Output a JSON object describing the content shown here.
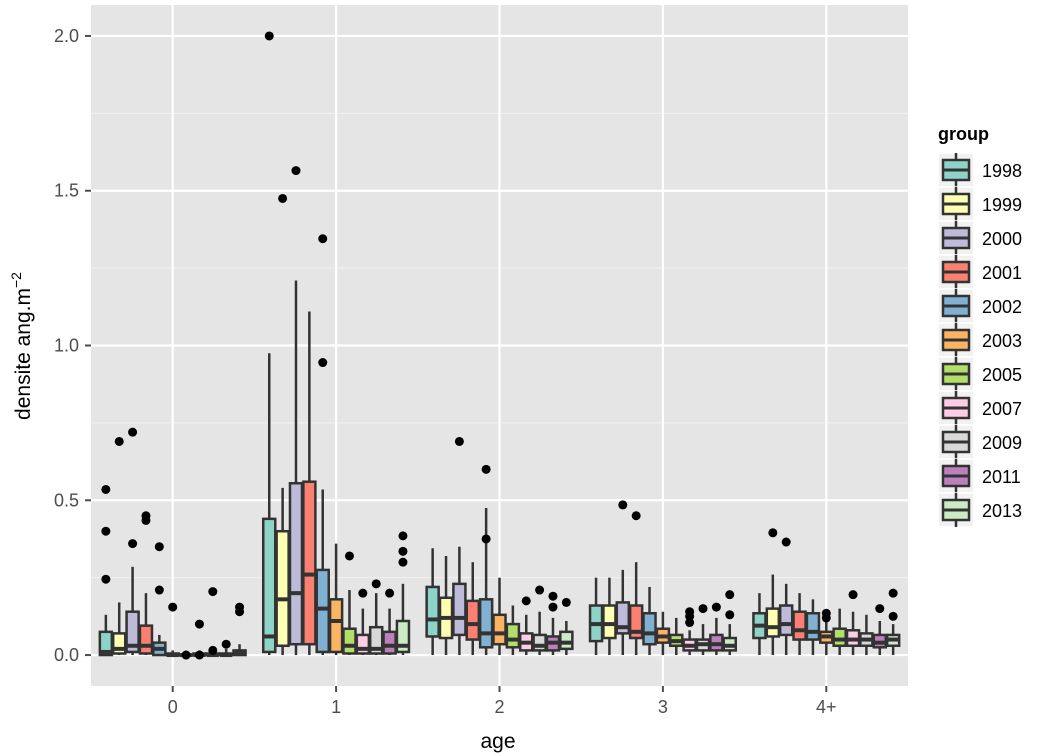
{
  "chart_data": {
    "type": "boxplot",
    "xlabel": "age",
    "ylabel_main": "densite ang.m",
    "ylabel_exponent": "−2",
    "legend_title": "group",
    "legend_position": "right",
    "grid": true,
    "ylim": [
      -0.1,
      2.1
    ],
    "y_ticks": [
      0.0,
      0.5,
      1.0,
      1.5,
      2.0
    ],
    "y_tick_labels": [
      "0.0",
      "0.5",
      "1.0",
      "1.5",
      "2.0"
    ],
    "categories": [
      "0",
      "1",
      "2",
      "3",
      "4+"
    ],
    "groups": [
      "1998",
      "1999",
      "2000",
      "2001",
      "2002",
      "2003",
      "2005",
      "2007",
      "2009",
      "2011",
      "2013"
    ],
    "colors": [
      "#8DD3C7",
      "#FFFFB3",
      "#BEBADA",
      "#FB8072",
      "#80B1D3",
      "#FDB462",
      "#B3DE69",
      "#FCCDE5",
      "#D9D9D9",
      "#BC80BD",
      "#CCEBC5"
    ],
    "box_stats": {
      "0": [
        {
          "lo": 0.0,
          "q1": 0.0,
          "med": 0.01,
          "q3": 0.075,
          "hi": 0.13,
          "out": [
            0.245,
            0.4,
            0.535
          ]
        },
        {
          "lo": 0.0,
          "q1": 0.005,
          "med": 0.02,
          "q3": 0.07,
          "hi": 0.17,
          "out": [
            0.69
          ]
        },
        {
          "lo": 0.0,
          "q1": 0.01,
          "med": 0.03,
          "q3": 0.14,
          "hi": 0.285,
          "out": [
            0.36,
            0.72
          ]
        },
        {
          "lo": 0.0,
          "q1": 0.005,
          "med": 0.03,
          "q3": 0.095,
          "hi": 0.2,
          "out": [
            0.435,
            0.45
          ]
        },
        {
          "lo": 0.0,
          "q1": 0.0,
          "med": 0.02,
          "q3": 0.04,
          "hi": 0.065,
          "out": [
            0.21,
            0.35
          ]
        },
        {
          "lo": 0.0,
          "q1": 0.0,
          "med": 0.0,
          "q3": 0.005,
          "hi": 0.015,
          "out": [
            0.155
          ]
        },
        {
          "lo": 0.0,
          "q1": 0.0,
          "med": 0.0,
          "q3": 0.0,
          "hi": 0.005,
          "out": [
            0.0
          ]
        },
        {
          "lo": 0.0,
          "q1": 0.0,
          "med": 0.0,
          "q3": 0.005,
          "hi": 0.015,
          "out": [
            0.0,
            0.1
          ]
        },
        {
          "lo": 0.0,
          "q1": 0.0,
          "med": 0.0,
          "q3": 0.005,
          "hi": 0.015,
          "out": [
            0.015,
            0.205
          ]
        },
        {
          "lo": 0.0,
          "q1": 0.0,
          "med": 0.0,
          "q3": 0.005,
          "hi": 0.02,
          "out": [
            0.035
          ]
        },
        {
          "lo": 0.0,
          "q1": 0.0,
          "med": 0.005,
          "q3": 0.015,
          "hi": 0.035,
          "out": [
            0.14,
            0.155
          ]
        }
      ],
      "1": [
        {
          "lo": 0.0,
          "q1": 0.01,
          "med": 0.06,
          "q3": 0.44,
          "hi": 0.975,
          "out": [
            2.0
          ]
        },
        {
          "lo": 0.0,
          "q1": 0.03,
          "med": 0.18,
          "q3": 0.4,
          "hi": 0.54,
          "out": [
            1.475
          ]
        },
        {
          "lo": 0.0,
          "q1": 0.035,
          "med": 0.2,
          "q3": 0.555,
          "hi": 1.21,
          "out": [
            1.565
          ]
        },
        {
          "lo": 0.0,
          "q1": 0.035,
          "med": 0.26,
          "q3": 0.56,
          "hi": 1.11,
          "out": []
        },
        {
          "lo": 0.0,
          "q1": 0.01,
          "med": 0.15,
          "q3": 0.275,
          "hi": 0.535,
          "out": [
            0.945,
            1.345
          ]
        },
        {
          "lo": 0.0,
          "q1": 0.01,
          "med": 0.11,
          "q3": 0.18,
          "hi": 0.36,
          "out": []
        },
        {
          "lo": 0.0,
          "q1": 0.005,
          "med": 0.03,
          "q3": 0.085,
          "hi": 0.21,
          "out": [
            0.32
          ]
        },
        {
          "lo": 0.0,
          "q1": 0.005,
          "med": 0.02,
          "q3": 0.065,
          "hi": 0.15,
          "out": [
            0.2
          ]
        },
        {
          "lo": 0.0,
          "q1": 0.005,
          "med": 0.02,
          "q3": 0.09,
          "hi": 0.2,
          "out": [
            0.23
          ]
        },
        {
          "lo": 0.0,
          "q1": 0.005,
          "med": 0.03,
          "q3": 0.075,
          "hi": 0.15,
          "out": [
            0.2
          ]
        },
        {
          "lo": 0.0,
          "q1": 0.01,
          "med": 0.03,
          "q3": 0.11,
          "hi": 0.23,
          "out": [
            0.3,
            0.335,
            0.385
          ]
        }
      ],
      "2": [
        {
          "lo": 0.0,
          "q1": 0.06,
          "med": 0.115,
          "q3": 0.22,
          "hi": 0.345,
          "out": []
        },
        {
          "lo": 0.0,
          "q1": 0.055,
          "med": 0.12,
          "q3": 0.185,
          "hi": 0.32,
          "out": []
        },
        {
          "lo": 0.0,
          "q1": 0.065,
          "med": 0.12,
          "q3": 0.23,
          "hi": 0.35,
          "out": [
            0.69
          ]
        },
        {
          "lo": 0.0,
          "q1": 0.05,
          "med": 0.1,
          "q3": 0.175,
          "hi": 0.3,
          "out": []
        },
        {
          "lo": 0.0,
          "q1": 0.025,
          "med": 0.07,
          "q3": 0.18,
          "hi": 0.475,
          "out": [
            0.375,
            0.6
          ]
        },
        {
          "lo": 0.0,
          "q1": 0.035,
          "med": 0.07,
          "q3": 0.13,
          "hi": 0.25,
          "out": []
        },
        {
          "lo": 0.0,
          "q1": 0.025,
          "med": 0.05,
          "q3": 0.1,
          "hi": 0.16,
          "out": []
        },
        {
          "lo": 0.0,
          "q1": 0.015,
          "med": 0.04,
          "q3": 0.07,
          "hi": 0.13,
          "out": [
            0.175
          ]
        },
        {
          "lo": 0.0,
          "q1": 0.015,
          "med": 0.03,
          "q3": 0.065,
          "hi": 0.14,
          "out": [
            0.21
          ]
        },
        {
          "lo": 0.0,
          "q1": 0.015,
          "med": 0.04,
          "q3": 0.06,
          "hi": 0.12,
          "out": [
            0.155,
            0.19
          ]
        },
        {
          "lo": 0.0,
          "q1": 0.02,
          "med": 0.04,
          "q3": 0.075,
          "hi": 0.11,
          "out": [
            0.17
          ]
        }
      ],
      "3": [
        {
          "lo": 0.0,
          "q1": 0.045,
          "med": 0.1,
          "q3": 0.16,
          "hi": 0.25,
          "out": []
        },
        {
          "lo": 0.0,
          "q1": 0.055,
          "med": 0.1,
          "q3": 0.16,
          "hi": 0.25,
          "out": []
        },
        {
          "lo": 0.0,
          "q1": 0.07,
          "med": 0.09,
          "q3": 0.17,
          "hi": 0.275,
          "out": [
            0.485
          ]
        },
        {
          "lo": 0.0,
          "q1": 0.055,
          "med": 0.075,
          "q3": 0.16,
          "hi": 0.3,
          "out": [
            0.45
          ]
        },
        {
          "lo": 0.0,
          "q1": 0.035,
          "med": 0.07,
          "q3": 0.135,
          "hi": 0.22,
          "out": []
        },
        {
          "lo": 0.0,
          "q1": 0.04,
          "med": 0.06,
          "q3": 0.085,
          "hi": 0.14,
          "out": []
        },
        {
          "lo": 0.0,
          "q1": 0.03,
          "med": 0.045,
          "q3": 0.065,
          "hi": 0.12,
          "out": []
        },
        {
          "lo": 0.0,
          "q1": 0.015,
          "med": 0.03,
          "q3": 0.05,
          "hi": 0.08,
          "out": [
            0.105,
            0.125,
            0.14
          ]
        },
        {
          "lo": 0.0,
          "q1": 0.015,
          "med": 0.035,
          "q3": 0.05,
          "hi": 0.1,
          "out": [
            0.15
          ]
        },
        {
          "lo": 0.0,
          "q1": 0.015,
          "med": 0.035,
          "q3": 0.065,
          "hi": 0.12,
          "out": [
            0.155
          ]
        },
        {
          "lo": 0.0,
          "q1": 0.015,
          "med": 0.03,
          "q3": 0.055,
          "hi": 0.1,
          "out": [
            0.13,
            0.195
          ]
        }
      ],
      "4+": [
        {
          "lo": 0.0,
          "q1": 0.055,
          "med": 0.095,
          "q3": 0.135,
          "hi": 0.2,
          "out": []
        },
        {
          "lo": 0.0,
          "q1": 0.06,
          "med": 0.09,
          "q3": 0.15,
          "hi": 0.26,
          "out": [
            0.395
          ]
        },
        {
          "lo": 0.0,
          "q1": 0.065,
          "med": 0.1,
          "q3": 0.16,
          "hi": 0.23,
          "out": [
            0.365
          ]
        },
        {
          "lo": 0.0,
          "q1": 0.05,
          "med": 0.08,
          "q3": 0.14,
          "hi": 0.2,
          "out": []
        },
        {
          "lo": 0.0,
          "q1": 0.05,
          "med": 0.075,
          "q3": 0.135,
          "hi": 0.18,
          "out": []
        },
        {
          "lo": 0.0,
          "q1": 0.04,
          "med": 0.06,
          "q3": 0.075,
          "hi": 0.11,
          "out": [
            0.12,
            0.135
          ]
        },
        {
          "lo": 0.0,
          "q1": 0.03,
          "med": 0.05,
          "q3": 0.085,
          "hi": 0.15,
          "out": []
        },
        {
          "lo": 0.0,
          "q1": 0.03,
          "med": 0.05,
          "q3": 0.08,
          "hi": 0.14,
          "out": [
            0.195
          ]
        },
        {
          "lo": 0.0,
          "q1": 0.03,
          "med": 0.05,
          "q3": 0.07,
          "hi": 0.13,
          "out": []
        },
        {
          "lo": 0.0,
          "q1": 0.025,
          "med": 0.04,
          "q3": 0.065,
          "hi": 0.11,
          "out": [
            0.15
          ]
        },
        {
          "lo": 0.0,
          "q1": 0.03,
          "med": 0.05,
          "q3": 0.065,
          "hi": 0.1,
          "out": [
            0.125,
            0.2
          ]
        }
      ]
    }
  }
}
